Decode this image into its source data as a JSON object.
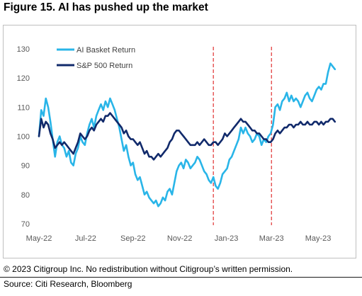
{
  "title": "Figure 15. AI has pushed up the market",
  "footer": {
    "copyright": "© 2023 Citigroup Inc. No redistribution without Citigroup’s written permission.",
    "source": "Source: Citi Research, Bloomberg"
  },
  "chart_data": {
    "type": "line",
    "title": "Figure 15. AI has pushed up the market",
    "xlabel": "",
    "ylabel": "",
    "ylim": [
      70,
      130
    ],
    "yticks": [
      70,
      80,
      90,
      100,
      110,
      120,
      130
    ],
    "xlim": [
      "2022-05-01",
      "2023-05-25"
    ],
    "xticks": [
      {
        "date": "2022-05-01",
        "label": "May-22"
      },
      {
        "date": "2022-07-01",
        "label": "Jul-22"
      },
      {
        "date": "2022-09-01",
        "label": "Sep-22"
      },
      {
        "date": "2022-11-01",
        "label": "Nov-22"
      },
      {
        "date": "2023-01-01",
        "label": "Jan-23"
      },
      {
        "date": "2023-03-01",
        "label": "Mar-23"
      },
      {
        "date": "2023-05-01",
        "label": "May-23"
      }
    ],
    "grid": false,
    "legend": "top-left",
    "vlines": [
      {
        "date": "2022-12-15",
        "style": "dashed",
        "color": "#e03030"
      },
      {
        "date": "2023-03-01",
        "style": "dashed",
        "color": "#e03030"
      }
    ],
    "series": [
      {
        "name": "AI Basket Return",
        "color": "#29b5e8",
        "points": [
          [
            "2022-05-01",
            100
          ],
          [
            "2022-05-04",
            109
          ],
          [
            "2022-05-07",
            107
          ],
          [
            "2022-05-10",
            113
          ],
          [
            "2022-05-13",
            110
          ],
          [
            "2022-05-16",
            105
          ],
          [
            "2022-05-19",
            99
          ],
          [
            "2022-05-22",
            93
          ],
          [
            "2022-05-25",
            98
          ],
          [
            "2022-05-28",
            100
          ],
          [
            "2022-05-31",
            97
          ],
          [
            "2022-06-03",
            96
          ],
          [
            "2022-06-06",
            93
          ],
          [
            "2022-06-09",
            95
          ],
          [
            "2022-06-12",
            91
          ],
          [
            "2022-06-15",
            90
          ],
          [
            "2022-06-18",
            94
          ],
          [
            "2022-06-21",
            96
          ],
          [
            "2022-06-24",
            100
          ],
          [
            "2022-06-27",
            98
          ],
          [
            "2022-06-30",
            97
          ],
          [
            "2022-07-03",
            101
          ],
          [
            "2022-07-06",
            104
          ],
          [
            "2022-07-09",
            106
          ],
          [
            "2022-07-12",
            103
          ],
          [
            "2022-07-15",
            107
          ],
          [
            "2022-07-18",
            109
          ],
          [
            "2022-07-21",
            111
          ],
          [
            "2022-07-24",
            109
          ],
          [
            "2022-07-27",
            112
          ],
          [
            "2022-07-30",
            110
          ],
          [
            "2022-08-02",
            113
          ],
          [
            "2022-08-05",
            111
          ],
          [
            "2022-08-08",
            109
          ],
          [
            "2022-08-11",
            106
          ],
          [
            "2022-08-14",
            103
          ],
          [
            "2022-08-17",
            99
          ],
          [
            "2022-08-20",
            95
          ],
          [
            "2022-08-23",
            97
          ],
          [
            "2022-08-26",
            93
          ],
          [
            "2022-08-29",
            90
          ],
          [
            "2022-09-01",
            91
          ],
          [
            "2022-09-04",
            87
          ],
          [
            "2022-09-07",
            85
          ],
          [
            "2022-09-10",
            86
          ],
          [
            "2022-09-13",
            83
          ],
          [
            "2022-09-16",
            80
          ],
          [
            "2022-09-19",
            81
          ],
          [
            "2022-09-22",
            79
          ],
          [
            "2022-09-25",
            78
          ],
          [
            "2022-09-28",
            77
          ],
          [
            "2022-10-01",
            78
          ],
          [
            "2022-10-04",
            76
          ],
          [
            "2022-10-07",
            77
          ],
          [
            "2022-10-10",
            79
          ],
          [
            "2022-10-13",
            78
          ],
          [
            "2022-10-16",
            81
          ],
          [
            "2022-10-19",
            82
          ],
          [
            "2022-10-22",
            80
          ],
          [
            "2022-10-25",
            84
          ],
          [
            "2022-10-28",
            88
          ],
          [
            "2022-10-31",
            90
          ],
          [
            "2022-11-03",
            91
          ],
          [
            "2022-11-06",
            89
          ],
          [
            "2022-11-09",
            92
          ],
          [
            "2022-11-12",
            91
          ],
          [
            "2022-11-15",
            89
          ],
          [
            "2022-11-18",
            90
          ],
          [
            "2022-11-21",
            91
          ],
          [
            "2022-11-24",
            93
          ],
          [
            "2022-11-27",
            92
          ],
          [
            "2022-11-30",
            90
          ],
          [
            "2022-12-03",
            88
          ],
          [
            "2022-12-06",
            87
          ],
          [
            "2022-12-09",
            85
          ],
          [
            "2022-12-12",
            84
          ],
          [
            "2022-12-15",
            86
          ],
          [
            "2022-12-18",
            83
          ],
          [
            "2022-12-21",
            82
          ],
          [
            "2022-12-24",
            84
          ],
          [
            "2022-12-27",
            87
          ],
          [
            "2022-12-30",
            88
          ],
          [
            "2023-01-02",
            89
          ],
          [
            "2023-01-05",
            92
          ],
          [
            "2023-01-08",
            93
          ],
          [
            "2023-01-11",
            95
          ],
          [
            "2023-01-14",
            97
          ],
          [
            "2023-01-17",
            99
          ],
          [
            "2023-01-20",
            103
          ],
          [
            "2023-01-23",
            101
          ],
          [
            "2023-01-26",
            103
          ],
          [
            "2023-01-29",
            101
          ],
          [
            "2023-02-01",
            100
          ],
          [
            "2023-02-04",
            98
          ],
          [
            "2023-02-07",
            99
          ],
          [
            "2023-02-10",
            101
          ],
          [
            "2023-02-13",
            100
          ],
          [
            "2023-02-16",
            97
          ],
          [
            "2023-02-19",
            99
          ],
          [
            "2023-02-22",
            98
          ],
          [
            "2023-02-25",
            100
          ],
          [
            "2023-02-28",
            101
          ],
          [
            "2023-03-03",
            104
          ],
          [
            "2023-03-06",
            110
          ],
          [
            "2023-03-09",
            111
          ],
          [
            "2023-03-12",
            109
          ],
          [
            "2023-03-15",
            112
          ],
          [
            "2023-03-18",
            113
          ],
          [
            "2023-03-21",
            115
          ],
          [
            "2023-03-24",
            112
          ],
          [
            "2023-03-27",
            114
          ],
          [
            "2023-03-30",
            112
          ],
          [
            "2023-04-02",
            113
          ],
          [
            "2023-04-05",
            112
          ],
          [
            "2023-04-08",
            110
          ],
          [
            "2023-04-11",
            112
          ],
          [
            "2023-04-14",
            114
          ],
          [
            "2023-04-17",
            115
          ],
          [
            "2023-04-20",
            113
          ],
          [
            "2023-04-23",
            112
          ],
          [
            "2023-04-26",
            114
          ],
          [
            "2023-04-29",
            116
          ],
          [
            "2023-05-02",
            117
          ],
          [
            "2023-05-05",
            116
          ],
          [
            "2023-05-08",
            118
          ],
          [
            "2023-05-11",
            118
          ],
          [
            "2023-05-14",
            122
          ],
          [
            "2023-05-17",
            125
          ],
          [
            "2023-05-20",
            124
          ],
          [
            "2023-05-23",
            123
          ]
        ]
      },
      {
        "name": "S&P 500 Return",
        "color": "#112a6b",
        "points": [
          [
            "2022-05-01",
            100
          ],
          [
            "2022-05-04",
            106
          ],
          [
            "2022-05-07",
            103
          ],
          [
            "2022-05-10",
            105
          ],
          [
            "2022-05-13",
            104
          ],
          [
            "2022-05-16",
            101
          ],
          [
            "2022-05-19",
            99
          ],
          [
            "2022-05-22",
            96
          ],
          [
            "2022-05-25",
            97
          ],
          [
            "2022-05-28",
            98
          ],
          [
            "2022-05-31",
            97
          ],
          [
            "2022-06-03",
            98
          ],
          [
            "2022-06-06",
            97
          ],
          [
            "2022-06-09",
            96
          ],
          [
            "2022-06-12",
            95
          ],
          [
            "2022-06-15",
            94
          ],
          [
            "2022-06-18",
            96
          ],
          [
            "2022-06-21",
            98
          ],
          [
            "2022-06-24",
            101
          ],
          [
            "2022-06-27",
            100
          ],
          [
            "2022-06-30",
            99
          ],
          [
            "2022-07-03",
            100
          ],
          [
            "2022-07-06",
            102
          ],
          [
            "2022-07-09",
            103
          ],
          [
            "2022-07-12",
            102
          ],
          [
            "2022-07-15",
            104
          ],
          [
            "2022-07-18",
            105
          ],
          [
            "2022-07-21",
            106
          ],
          [
            "2022-07-24",
            105
          ],
          [
            "2022-07-27",
            107
          ],
          [
            "2022-07-30",
            107
          ],
          [
            "2022-08-02",
            108
          ],
          [
            "2022-08-05",
            107
          ],
          [
            "2022-08-08",
            106
          ],
          [
            "2022-08-11",
            105
          ],
          [
            "2022-08-14",
            104
          ],
          [
            "2022-08-17",
            103
          ],
          [
            "2022-08-20",
            101
          ],
          [
            "2022-08-23",
            102
          ],
          [
            "2022-08-26",
            100
          ],
          [
            "2022-08-29",
            99
          ],
          [
            "2022-09-01",
            99
          ],
          [
            "2022-09-04",
            98
          ],
          [
            "2022-09-07",
            97
          ],
          [
            "2022-09-10",
            98
          ],
          [
            "2022-09-13",
            96
          ],
          [
            "2022-09-16",
            94
          ],
          [
            "2022-09-19",
            95
          ],
          [
            "2022-09-22",
            93
          ],
          [
            "2022-09-25",
            93
          ],
          [
            "2022-09-28",
            92
          ],
          [
            "2022-10-01",
            93
          ],
          [
            "2022-10-04",
            94
          ],
          [
            "2022-10-07",
            93
          ],
          [
            "2022-10-10",
            94
          ],
          [
            "2022-10-13",
            95
          ],
          [
            "2022-10-16",
            96
          ],
          [
            "2022-10-19",
            98
          ],
          [
            "2022-10-22",
            99
          ],
          [
            "2022-10-25",
            101
          ],
          [
            "2022-10-28",
            102
          ],
          [
            "2022-10-31",
            102
          ],
          [
            "2022-11-03",
            101
          ],
          [
            "2022-11-06",
            100
          ],
          [
            "2022-11-09",
            99
          ],
          [
            "2022-11-12",
            98
          ],
          [
            "2022-11-15",
            97
          ],
          [
            "2022-11-18",
            97
          ],
          [
            "2022-11-21",
            97
          ],
          [
            "2022-11-24",
            98
          ],
          [
            "2022-11-27",
            97
          ],
          [
            "2022-11-30",
            98
          ],
          [
            "2022-12-03",
            99
          ],
          [
            "2022-12-06",
            98
          ],
          [
            "2022-12-09",
            97
          ],
          [
            "2022-12-12",
            97
          ],
          [
            "2022-12-15",
            98
          ],
          [
            "2022-12-18",
            98
          ],
          [
            "2022-12-21",
            97
          ],
          [
            "2022-12-24",
            98
          ],
          [
            "2022-12-27",
            99
          ],
          [
            "2022-12-30",
            101
          ],
          [
            "2023-01-02",
            100
          ],
          [
            "2023-01-05",
            101
          ],
          [
            "2023-01-08",
            102
          ],
          [
            "2023-01-11",
            103
          ],
          [
            "2023-01-14",
            104
          ],
          [
            "2023-01-17",
            105
          ],
          [
            "2023-01-20",
            106
          ],
          [
            "2023-01-23",
            105
          ],
          [
            "2023-01-26",
            105
          ],
          [
            "2023-01-29",
            104
          ],
          [
            "2023-02-01",
            103
          ],
          [
            "2023-02-04",
            102
          ],
          [
            "2023-02-07",
            102
          ],
          [
            "2023-02-10",
            101
          ],
          [
            "2023-02-13",
            101
          ],
          [
            "2023-02-16",
            100
          ],
          [
            "2023-02-19",
            99
          ],
          [
            "2023-02-22",
            99
          ],
          [
            "2023-02-25",
            98
          ],
          [
            "2023-02-28",
            98
          ],
          [
            "2023-03-03",
            99
          ],
          [
            "2023-03-06",
            101
          ],
          [
            "2023-03-09",
            102
          ],
          [
            "2023-03-12",
            101
          ],
          [
            "2023-03-15",
            102
          ],
          [
            "2023-03-18",
            103
          ],
          [
            "2023-03-21",
            103
          ],
          [
            "2023-03-24",
            104
          ],
          [
            "2023-03-27",
            104
          ],
          [
            "2023-03-30",
            103
          ],
          [
            "2023-04-02",
            104
          ],
          [
            "2023-04-05",
            104
          ],
          [
            "2023-04-08",
            105
          ],
          [
            "2023-04-11",
            104
          ],
          [
            "2023-04-14",
            104
          ],
          [
            "2023-04-17",
            105
          ],
          [
            "2023-04-20",
            104
          ],
          [
            "2023-04-23",
            104
          ],
          [
            "2023-04-26",
            105
          ],
          [
            "2023-04-29",
            105
          ],
          [
            "2023-05-02",
            104
          ],
          [
            "2023-05-05",
            105
          ],
          [
            "2023-05-08",
            104
          ],
          [
            "2023-05-11",
            105
          ],
          [
            "2023-05-14",
            105
          ],
          [
            "2023-05-17",
            106
          ],
          [
            "2023-05-20",
            106
          ],
          [
            "2023-05-23",
            105
          ]
        ]
      }
    ]
  }
}
